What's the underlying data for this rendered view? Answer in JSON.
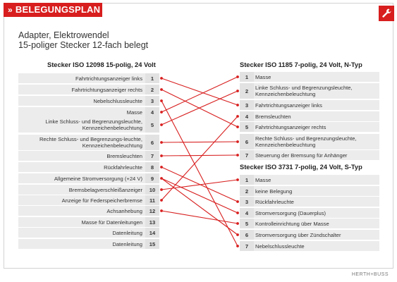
{
  "header": {
    "badge": "BELEGUNGSPLAN",
    "chevron": "»",
    "tool_icon": "wrench-icon",
    "accent": "#d81e1e"
  },
  "title": {
    "line1": "Adapter, Elektrowendel",
    "line2": "15-poliger Stecker 12-fach belegt"
  },
  "left": {
    "title": "Stecker ISO 12098 15-polig, 24 Volt",
    "pins": [
      {
        "n": "1",
        "label": "Fahrtrichtungsanzeiger links"
      },
      {
        "n": "2",
        "label": "Fahrtrichtungsanzeiger rechts"
      },
      {
        "n": "3",
        "label": "Nebelschlussleuchte"
      },
      {
        "n": "4",
        "label": "Masse"
      },
      {
        "n": "5",
        "label": "Linke Schluss- und Begrenzungsleuchte, Kennzeichenbeleuchtung"
      },
      {
        "n": "6",
        "label": "Rechte Schluss- und Begrenzungs-leuchte, Kennzeichenbeleuchtung"
      },
      {
        "n": "7",
        "label": "Bremsleuchten"
      },
      {
        "n": "8",
        "label": "Rückfahrleuchte"
      },
      {
        "n": "9",
        "label": "Allgemeine Stromversorgung (+24 V)"
      },
      {
        "n": "10",
        "label": "Bremsbelagverschleißanzeiger"
      },
      {
        "n": "11",
        "label": "Anzeige für Federspeicherbremse"
      },
      {
        "n": "12",
        "label": "Achsanhebung"
      },
      {
        "n": "13",
        "label": "Masse für Datenleitungen"
      },
      {
        "n": "14",
        "label": "Datenleitung"
      },
      {
        "n": "15",
        "label": "Datenleitung"
      }
    ]
  },
  "right_top": {
    "title": "Stecker ISO 1185 7-polig, 24 Volt, N-Typ",
    "pins": [
      {
        "n": "1",
        "label": "Masse"
      },
      {
        "n": "2",
        "label": "Linke Schluss- und Begrenzungsleuchte, Kennzeichenbeleuchtung"
      },
      {
        "n": "3",
        "label": "Fahrtrichtungsanzeiger links"
      },
      {
        "n": "4",
        "label": "Bremsleuchten"
      },
      {
        "n": "5",
        "label": "Fahrtrichtungsanzeiger rechts"
      },
      {
        "n": "6",
        "label": "Rechte Schluss- und Begrenzungsleuchte, Kennzeichenbeleuchtung"
      },
      {
        "n": "7",
        "label": "Steuerung der Bremsung für Anhänger"
      }
    ]
  },
  "right_bottom": {
    "title": "Stecker ISO 3731 7-polig, 24 Volt, S-Typ",
    "pins": [
      {
        "n": "1",
        "label": "Masse"
      },
      {
        "n": "2",
        "label": "keine Belegung"
      },
      {
        "n": "3",
        "label": "Rückfahrleuchte"
      },
      {
        "n": "4",
        "label": "Stromversorgung (Dauerplus)"
      },
      {
        "n": "5",
        "label": "Kontrolleinrichtung über Masse"
      },
      {
        "n": "6",
        "label": "Stromversorgung über Zündschalter"
      },
      {
        "n": "7",
        "label": "Nebelschlussleuchte"
      }
    ]
  },
  "wiring": {
    "color": "#d81e1e",
    "connections": [
      {
        "from": "1",
        "to": "N3"
      },
      {
        "from": "2",
        "to": "N5"
      },
      {
        "from": "3",
        "to": "S7"
      },
      {
        "from": "4",
        "to": "N1"
      },
      {
        "from": "5",
        "to": "N2"
      },
      {
        "from": "6",
        "to": "N6"
      },
      {
        "from": "7",
        "to": "N7"
      },
      {
        "from": "8",
        "to": "S3"
      },
      {
        "from": "9",
        "to": "S4"
      },
      {
        "from": "9",
        "to": "S6"
      },
      {
        "from": "10",
        "to": "S1"
      },
      {
        "from": "11",
        "to": "N4"
      },
      {
        "from": "12",
        "to": "S5"
      }
    ]
  },
  "brand": "HERTH+BUSS"
}
